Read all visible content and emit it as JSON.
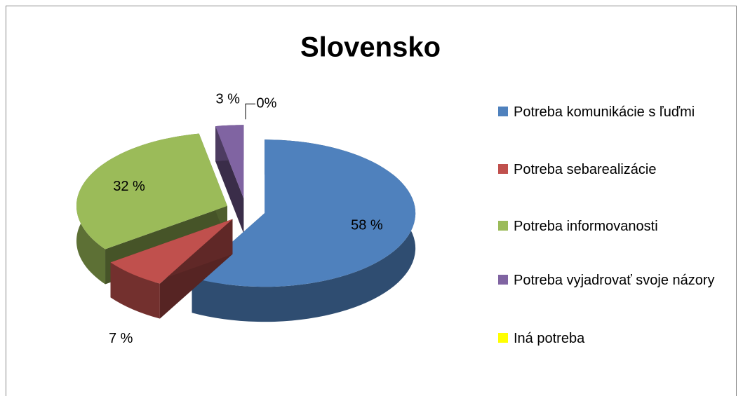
{
  "chart_data": {
    "type": "pie",
    "title": "Slovensko",
    "categories": [
      "Potreba komunikácie s ľuďmi",
      "Potreba sebarealizácie",
      "Potreba informovanosti",
      "Potreba vyjadrovať svoje názory",
      "Iná potreba"
    ],
    "values": [
      58,
      7,
      32,
      3,
      0
    ],
    "value_labels": [
      "58 %",
      "7 %",
      "32 %",
      "3 %",
      "0%"
    ],
    "colors": [
      "#4f81bd",
      "#c0504d",
      "#9bbb59",
      "#8064a2",
      "#ffff00"
    ],
    "legend": "right"
  }
}
